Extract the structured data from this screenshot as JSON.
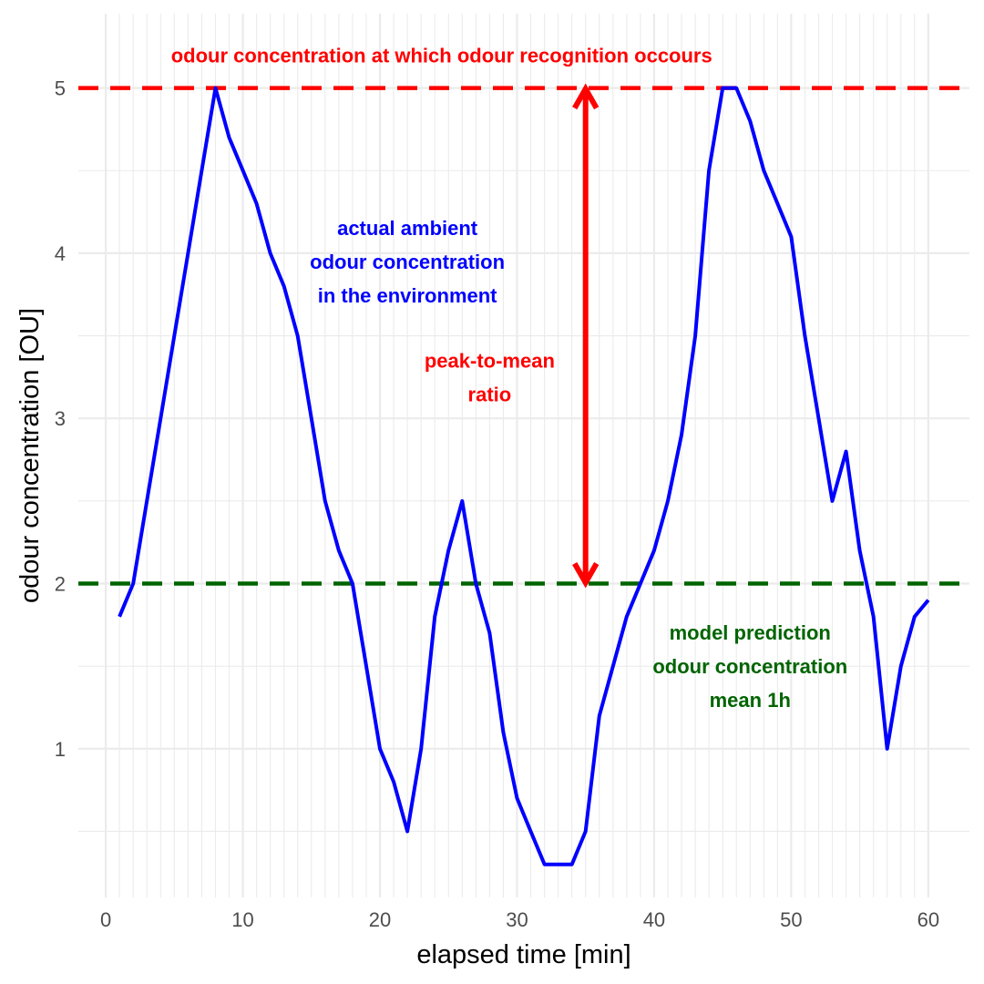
{
  "chart_data": {
    "type": "line",
    "title": "",
    "xlabel": "elapsed time [min]",
    "ylabel": "odour concentration [OU]",
    "xlim": [
      -2,
      63
    ],
    "ylim": [
      0.1,
      5.45
    ],
    "x_ticks": [
      0,
      10,
      20,
      30,
      40,
      50,
      60
    ],
    "y_ticks": [
      1,
      2,
      3,
      4,
      5
    ],
    "grid": true,
    "series": [
      {
        "color": "#0000ff",
        "x": [
          1,
          2,
          3,
          4,
          5,
          6,
          7,
          8,
          9,
          10,
          11,
          12,
          13,
          14,
          15,
          16,
          17,
          18,
          19,
          20,
          21,
          22,
          23,
          24,
          25,
          26,
          27,
          28,
          29,
          30,
          31,
          32,
          33,
          34,
          35,
          36,
          37,
          38,
          39,
          40,
          41,
          42,
          43,
          44,
          45,
          46,
          47,
          48,
          49,
          50,
          51,
          52,
          53,
          54,
          55,
          56,
          57,
          58,
          59,
          60
        ],
        "y": [
          1.8,
          2.0,
          2.5,
          3.0,
          3.5,
          4.0,
          4.5,
          5.0,
          4.7,
          4.5,
          4.3,
          4.0,
          3.8,
          3.5,
          3.0,
          2.5,
          2.2,
          2.0,
          1.5,
          1.0,
          0.8,
          0.5,
          1.0,
          1.8,
          2.2,
          2.5,
          2.0,
          1.7,
          1.1,
          0.7,
          0.5,
          0.3,
          0.3,
          0.3,
          0.5,
          1.2,
          1.5,
          1.8,
          2.0,
          2.2,
          2.5,
          2.9,
          3.5,
          4.5,
          5.0,
          5.0,
          4.8,
          4.5,
          4.3,
          4.1,
          3.5,
          3.0,
          2.5,
          2.8,
          2.2,
          1.8,
          1.0,
          1.5,
          1.8,
          1.9
        ]
      }
    ],
    "reference_lines": [
      {
        "y": 5,
        "color": "#ff0000",
        "style": "dashed"
      },
      {
        "y": 2,
        "color": "#006400",
        "style": "dashed"
      }
    ],
    "arrow": {
      "x": 35,
      "y_from": 2,
      "y_to": 5,
      "color": "#ff0000",
      "double_headed": true
    },
    "annotations": [
      {
        "lines": [
          "odour concentration at which odour recognition occours"
        ],
        "x": 24.5,
        "y": 5.2,
        "color": "#ff0000"
      },
      {
        "lines": [
          "actual ambient",
          "odour concentration",
          "in the environment"
        ],
        "x": 22,
        "y": 3.95,
        "color": "#0000ff"
      },
      {
        "lines": [
          "peak-to-mean",
          "ratio"
        ],
        "x": 28,
        "y": 3.25,
        "color": "#ff0000"
      },
      {
        "lines": [
          "model prediction",
          "odour concentration",
          "mean 1h"
        ],
        "x": 47,
        "y": 1.5,
        "color": "#006400"
      }
    ]
  }
}
